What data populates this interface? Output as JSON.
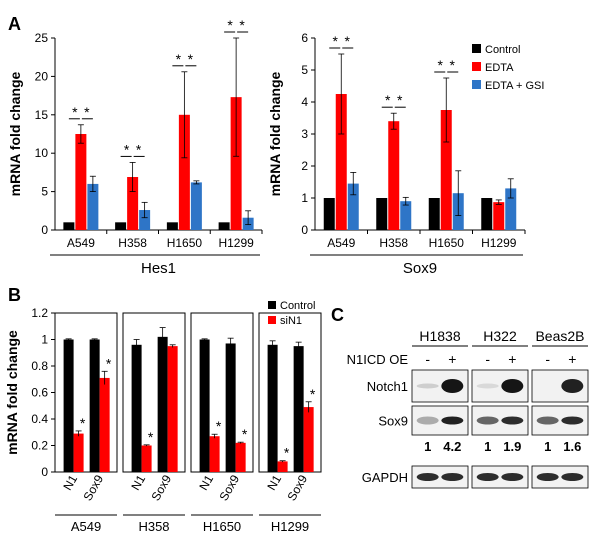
{
  "panel_labels": {
    "a": "A",
    "b": "B",
    "c": "C"
  },
  "colors": {
    "control": "#000000",
    "edta": "#ff0000",
    "gsi": "#2e75c7",
    "sin1": "#ff0000"
  },
  "chart_data": [
    {
      "id": "A-Hes1",
      "type": "bar",
      "title": "",
      "xlabel": "Hes1",
      "ylabel": "mRNA fold change",
      "ylim": [
        0,
        25
      ],
      "yticks": [
        "0",
        "5",
        "10",
        "15",
        "20",
        "25"
      ],
      "categories": [
        "A549",
        "H358",
        "H1650",
        "H1299"
      ],
      "series": [
        {
          "name": "Control",
          "values": [
            1,
            1,
            1,
            1
          ],
          "errors": [
            0,
            0,
            0,
            0
          ]
        },
        {
          "name": "EDTA",
          "values": [
            12.5,
            6.9,
            15.0,
            17.3
          ],
          "errors": [
            1.2,
            1.9,
            5.6,
            7.7
          ]
        },
        {
          "name": "EDTA + GSI",
          "values": [
            6.0,
            2.6,
            6.2,
            1.6
          ],
          "errors": [
            1.0,
            1.0,
            0.2,
            0.9
          ]
        }
      ],
      "significance_marks": [
        "*",
        "*",
        "*",
        "*",
        "*",
        "*",
        "*",
        "*"
      ]
    },
    {
      "id": "A-Sox9",
      "type": "bar",
      "title": "",
      "xlabel": "Sox9",
      "ylabel": "mRNA fold change",
      "ylim": [
        0,
        6
      ],
      "yticks": [
        "0",
        "1",
        "2",
        "3",
        "4",
        "5",
        "6"
      ],
      "categories": [
        "A549",
        "H358",
        "H1650",
        "H1299"
      ],
      "series": [
        {
          "name": "Control",
          "values": [
            1,
            1,
            1,
            1
          ],
          "errors": [
            0,
            0,
            0,
            0
          ]
        },
        {
          "name": "EDTA",
          "values": [
            4.25,
            3.4,
            3.75,
            0.87
          ],
          "errors": [
            1.25,
            0.25,
            1.0,
            0.07
          ]
        },
        {
          "name": "EDTA + GSI",
          "values": [
            1.45,
            0.9,
            1.15,
            1.3
          ],
          "errors": [
            0.35,
            0.12,
            0.7,
            0.3
          ]
        }
      ],
      "significance_marks": [
        "*",
        "*",
        "*",
        "*",
        "*",
        "*"
      ],
      "legend": [
        "Control",
        "EDTA",
        "EDTA + GSI"
      ],
      "legend_position": "top-right"
    },
    {
      "id": "B",
      "type": "bar",
      "title": "",
      "ylabel": "mRNA fold change",
      "ylim": [
        0,
        1.2
      ],
      "yticks": [
        "0",
        "0.2",
        "0.4",
        "0.6",
        "0.8",
        "1",
        "1.2"
      ],
      "groups": [
        "A549",
        "H358",
        "H1650",
        "H1299"
      ],
      "categories": [
        "N1",
        "Sox9"
      ],
      "series": [
        {
          "name": "Control",
          "values": [
            [
              1.0,
              1.0
            ],
            [
              0.96,
              1.02
            ],
            [
              1.0,
              0.97
            ],
            [
              0.96,
              0.95
            ]
          ],
          "errors": [
            [
              0.005,
              0.005
            ],
            [
              0.04,
              0.07
            ],
            [
              0.005,
              0.04
            ],
            [
              0.03,
              0.03
            ]
          ]
        },
        {
          "name": "siN1",
          "values": [
            [
              0.29,
              0.71
            ],
            [
              0.2,
              0.95
            ],
            [
              0.27,
              0.22
            ],
            [
              0.08,
              0.49
            ]
          ],
          "errors": [
            [
              0.02,
              0.05
            ],
            [
              0.005,
              0.01
            ],
            [
              0.015,
              0.005
            ],
            [
              0.005,
              0.04
            ]
          ]
        }
      ],
      "significance_marks": [
        "*",
        "*",
        "*",
        "*",
        "*",
        "*",
        "*"
      ],
      "legend": [
        "Control",
        "siN1"
      ],
      "legend_position": "top-right"
    }
  ],
  "western_blot": {
    "cell_lines": [
      "H1838",
      "H322",
      "Beas2B"
    ],
    "condition_label": "N1ICD OE",
    "lane_signs": [
      "-",
      "+"
    ],
    "row_labels": [
      "Notch1",
      "Sox9",
      "GAPDH"
    ],
    "quantification": [
      "1",
      "4.2",
      "1",
      "1.9",
      "1",
      "1.6"
    ]
  }
}
